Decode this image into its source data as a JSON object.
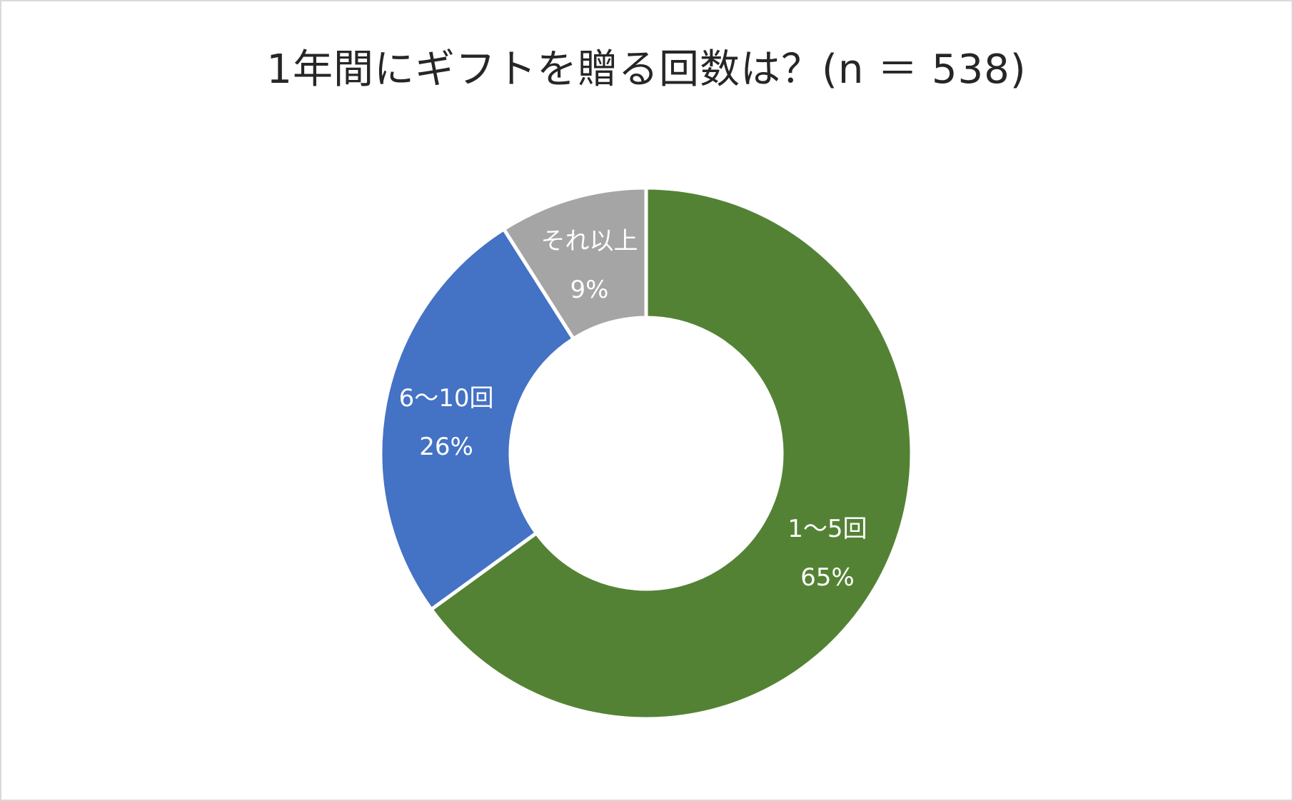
{
  "chart_data": {
    "type": "pie",
    "title": "1年間にギフトを贈る回数は？(n ＝ 538)",
    "donut": true,
    "slices": [
      {
        "label": "1〜5回",
        "value": 65,
        "value_label": "65%",
        "color": "#548235"
      },
      {
        "label": "6〜10回",
        "value": 26,
        "value_label": "26%",
        "color": "#4472c4"
      },
      {
        "label": "それ以上",
        "value": 9,
        "value_label": "9%",
        "color": "#a5a5a5"
      }
    ],
    "legend": "none"
  }
}
